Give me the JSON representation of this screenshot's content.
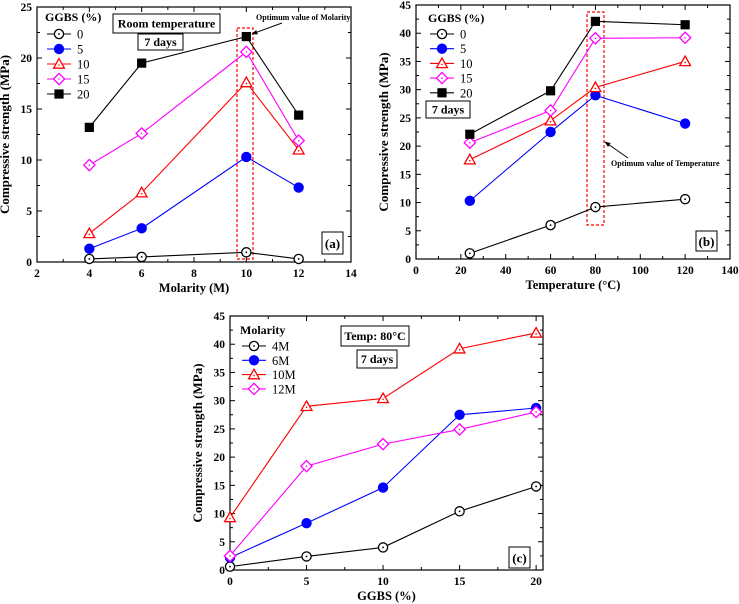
{
  "chart_data": [
    {
      "type": "line",
      "panel_label": "(a)",
      "xlabel": "Molarity (M)",
      "ylabel": "Compressive strength (MPa)",
      "xlim": [
        2,
        14
      ],
      "ylim": [
        0,
        25
      ],
      "xticks": [
        2,
        4,
        6,
        8,
        10,
        12,
        14
      ],
      "yticks": [
        0,
        5,
        10,
        15,
        20,
        25
      ],
      "legend_title": "GGBS (%)",
      "legend_position": "top-left",
      "annotations": [
        "Room temperature",
        "7 days",
        "Optimum value of Molarity"
      ],
      "x": [
        4,
        6,
        10,
        12
      ],
      "series": [
        {
          "name": "0",
          "values": [
            0.3,
            0.5,
            0.95,
            0.3
          ],
          "color": "#000000",
          "marker": "open-circle"
        },
        {
          "name": "5",
          "values": [
            1.3,
            3.3,
            10.3,
            7.3
          ],
          "color": "#0000ff",
          "marker": "filled-circle"
        },
        {
          "name": "10",
          "values": [
            2.8,
            6.8,
            17.6,
            11.0
          ],
          "color": "#ff0000",
          "marker": "open-triangle"
        },
        {
          "name": "15",
          "values": [
            9.5,
            12.6,
            20.6,
            11.9
          ],
          "color": "#ff00ff",
          "marker": "open-diamond"
        },
        {
          "name": "20",
          "values": [
            13.2,
            19.5,
            22.1,
            14.4
          ],
          "color": "#000000",
          "marker": "filled-square"
        }
      ]
    },
    {
      "type": "line",
      "panel_label": "(b)",
      "xlabel": "Temperature (°C)",
      "ylabel": "Compressive strength (MPa)",
      "xlim": [
        0,
        140
      ],
      "ylim": [
        0,
        45
      ],
      "xticks": [
        0,
        20,
        40,
        60,
        80,
        100,
        120,
        140
      ],
      "yticks": [
        0,
        5,
        10,
        15,
        20,
        25,
        30,
        35,
        40,
        45
      ],
      "legend_title": "GGBS (%)",
      "legend_position": "top-left",
      "annotations": [
        "7 days",
        "Optimum value of Temperature"
      ],
      "x": [
        24,
        60,
        80,
        120
      ],
      "series": [
        {
          "name": "0",
          "values": [
            1.0,
            6.0,
            9.2,
            10.6
          ],
          "color": "#000000",
          "marker": "open-circle"
        },
        {
          "name": "5",
          "values": [
            10.3,
            22.5,
            29.0,
            24.0
          ],
          "color": "#0000ff",
          "marker": "filled-circle"
        },
        {
          "name": "10",
          "values": [
            17.6,
            24.5,
            30.4,
            35.0
          ],
          "color": "#ff0000",
          "marker": "open-triangle"
        },
        {
          "name": "15",
          "values": [
            20.6,
            26.3,
            39.1,
            39.2
          ],
          "color": "#ff00ff",
          "marker": "open-diamond"
        },
        {
          "name": "20",
          "values": [
            22.1,
            29.8,
            42.1,
            41.5
          ],
          "color": "#000000",
          "marker": "filled-square"
        }
      ]
    },
    {
      "type": "line",
      "panel_label": "(c)",
      "xlabel": "GGBS (%)",
      "ylabel": "Compressive strength (MPa)",
      "xlim": [
        0,
        20.45
      ],
      "ylim": [
        0,
        45
      ],
      "xticks": [
        0,
        5,
        10,
        15,
        20
      ],
      "yticks": [
        0,
        5,
        10,
        15,
        20,
        25,
        30,
        35,
        40,
        45
      ],
      "legend_title": "Molarity",
      "legend_position": "top-left",
      "annotations": [
        "Temp: 80°C",
        "7 days"
      ],
      "x": [
        0,
        5,
        10,
        15,
        20
      ],
      "series": [
        {
          "name": "4M",
          "values": [
            0.6,
            2.4,
            4.0,
            10.4,
            14.8
          ],
          "color": "#000000",
          "marker": "open-circle"
        },
        {
          "name": "6M",
          "values": [
            2.2,
            8.3,
            14.6,
            27.5,
            28.7
          ],
          "color": "#0000ff",
          "marker": "filled-circle"
        },
        {
          "name": "10M",
          "values": [
            9.3,
            29.0,
            30.4,
            39.2,
            42.0
          ],
          "color": "#ff0000",
          "marker": "open-triangle"
        },
        {
          "name": "12M",
          "values": [
            2.5,
            18.4,
            22.3,
            24.9,
            28.0
          ],
          "color": "#ff00ff",
          "marker": "open-diamond"
        }
      ]
    }
  ]
}
